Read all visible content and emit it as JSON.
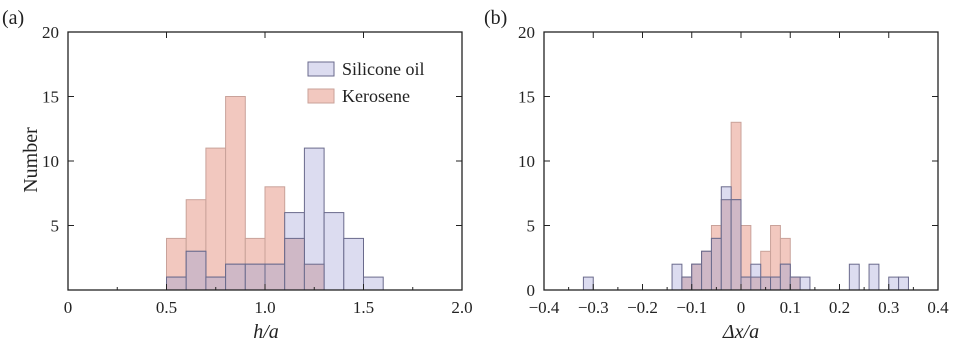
{
  "colors": {
    "silicone_fill": "#dcdcf0",
    "silicone_stroke": "#6a6a8c",
    "kerosene_fill": "#f2c8bf",
    "kerosene_stroke": "#c9a29a",
    "overlap_fill": "#cfb8c6",
    "axis": "#222222"
  },
  "chart_data": [
    {
      "panel": "(a)",
      "type": "histogram",
      "xlabel": "h/a",
      "ylabel": "Number",
      "xlim": [
        0,
        2.0
      ],
      "ylim": [
        0,
        20
      ],
      "bin_width": 0.1,
      "xticks": [
        "0",
        "0.5",
        "1.0",
        "1.5",
        "2.0"
      ],
      "yticks": [
        "5",
        "10",
        "15",
        "20"
      ],
      "legend": {
        "position": "top-right",
        "entries": [
          "Silicone oil",
          "Kerosene"
        ]
      },
      "series": [
        {
          "name": "Kerosene",
          "bins": [
            {
              "x": 0.5,
              "count": 4
            },
            {
              "x": 0.6,
              "count": 7
            },
            {
              "x": 0.7,
              "count": 11
            },
            {
              "x": 0.8,
              "count": 15
            },
            {
              "x": 0.9,
              "count": 4
            },
            {
              "x": 1.0,
              "count": 8
            },
            {
              "x": 1.1,
              "count": 4
            },
            {
              "x": 1.2,
              "count": 2
            }
          ]
        },
        {
          "name": "Silicone oil",
          "bins": [
            {
              "x": 0.5,
              "count": 1
            },
            {
              "x": 0.6,
              "count": 3
            },
            {
              "x": 0.7,
              "count": 1
            },
            {
              "x": 0.8,
              "count": 2
            },
            {
              "x": 0.9,
              "count": 2
            },
            {
              "x": 1.0,
              "count": 2
            },
            {
              "x": 1.1,
              "count": 6
            },
            {
              "x": 1.2,
              "count": 11
            },
            {
              "x": 1.3,
              "count": 6
            },
            {
              "x": 1.4,
              "count": 4
            },
            {
              "x": 1.5,
              "count": 1
            }
          ]
        }
      ]
    },
    {
      "panel": "(b)",
      "type": "histogram",
      "xlabel": "Δx/a",
      "ylabel": "",
      "xlim": [
        -0.4,
        0.4
      ],
      "ylim": [
        0,
        20
      ],
      "bin_width": 0.02,
      "xticks": [
        "−0.4",
        "−0.3",
        "−0.2",
        "−0.1",
        "0",
        "0.1",
        "0.2",
        "0.3",
        "0.4"
      ],
      "yticks": [
        "0",
        "5",
        "10",
        "15",
        "20"
      ],
      "series": [
        {
          "name": "Kerosene",
          "bins": [
            {
              "x": -0.12,
              "count": 1
            },
            {
              "x": -0.1,
              "count": 2
            },
            {
              "x": -0.08,
              "count": 3
            },
            {
              "x": -0.06,
              "count": 5
            },
            {
              "x": -0.04,
              "count": 7
            },
            {
              "x": -0.02,
              "count": 13
            },
            {
              "x": 0.0,
              "count": 5
            },
            {
              "x": 0.02,
              "count": 1
            },
            {
              "x": 0.04,
              "count": 3
            },
            {
              "x": 0.06,
              "count": 5
            },
            {
              "x": 0.08,
              "count": 4
            },
            {
              "x": 0.1,
              "count": 1
            }
          ]
        },
        {
          "name": "Silicone oil",
          "bins": [
            {
              "x": -0.32,
              "count": 1
            },
            {
              "x": -0.14,
              "count": 2
            },
            {
              "x": -0.12,
              "count": 1
            },
            {
              "x": -0.1,
              "count": 2
            },
            {
              "x": -0.08,
              "count": 3
            },
            {
              "x": -0.06,
              "count": 4
            },
            {
              "x": -0.04,
              "count": 8
            },
            {
              "x": -0.02,
              "count": 7
            },
            {
              "x": 0.0,
              "count": 1
            },
            {
              "x": 0.02,
              "count": 2
            },
            {
              "x": 0.04,
              "count": 1
            },
            {
              "x": 0.06,
              "count": 1
            },
            {
              "x": 0.08,
              "count": 2
            },
            {
              "x": 0.1,
              "count": 1
            },
            {
              "x": 0.12,
              "count": 1
            },
            {
              "x": 0.22,
              "count": 2
            },
            {
              "x": 0.26,
              "count": 2
            },
            {
              "x": 0.3,
              "count": 1
            },
            {
              "x": 0.32,
              "count": 1
            }
          ]
        }
      ]
    }
  ]
}
